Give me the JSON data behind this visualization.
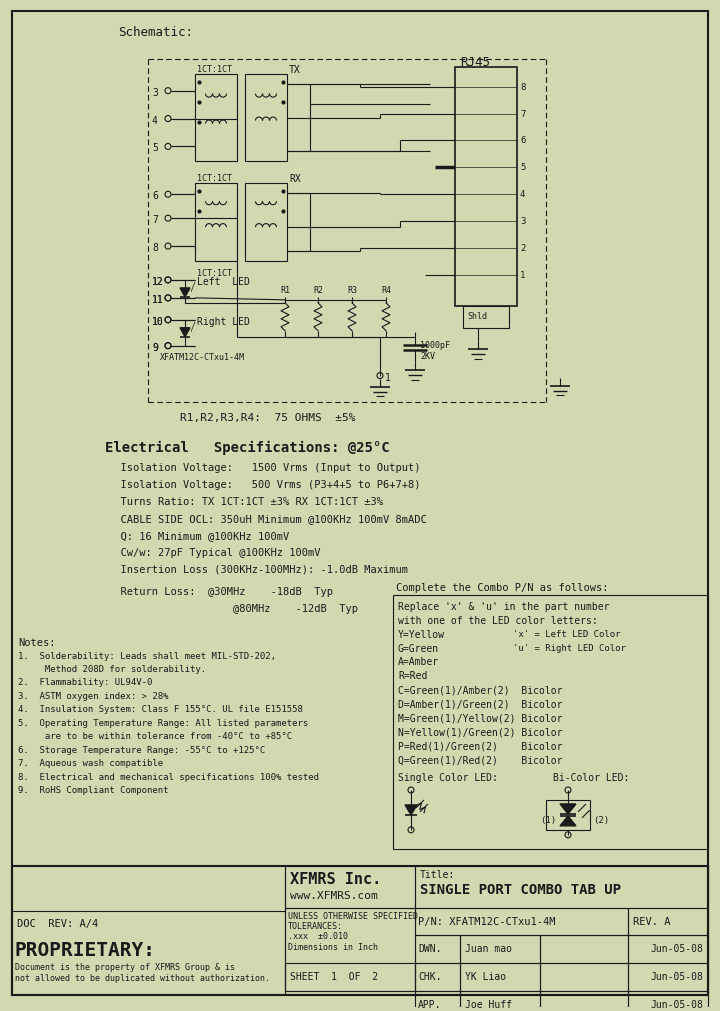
{
  "bg_color": "#d4d8b0",
  "border_color": "#1a1a1a",
  "schematic_title": "Schematic:",
  "elec_spec_title": "Electrical   Specifications: @25°C",
  "elec_specs": [
    "  Isolation Voltage:   1500 Vrms (Input to Output)",
    "  Isolation Voltage:   500 Vrms (P3+4+5 to P6+7+8)",
    "  Turns Ratio: TX 1CT:1CT ±3% RX 1CT:1CT ±3%",
    "  CABLE SIDE OCL: 350uH Minimum @100KHz 100mV 8mADC",
    "  Q: 16 Minimum @100KHz 100mV",
    "  Cw/w: 27pF Typical @100KHz 100mV",
    "  Insertion Loss (300KHz-100MHz): -1.0dB Maximum"
  ],
  "return_loss_lines": [
    "  Return Loss:  @30MHz    -18dB  Typ",
    "                    @80MHz    -12dB  Typ"
  ],
  "combo_title": "Complete the Combo P/N as follows:",
  "combo_lines": [
    "Replace 'x' & 'u' in the part number",
    "with one of the LED color letters:",
    "Y=Yellow",
    "G=Green",
    "A=Amber",
    "R=Red",
    "C=Green(1)/Amber(2)  Bicolor",
    "D=Amber(1)/Green(2)  Bicolor",
    "M=Green(1)/Yellow(2) Bicolor",
    "N=Yellow(1)/Green(2) Bicolor",
    "P=Red(1)/Green(2)    Bicolor",
    "Q=Green(1)/Red(2)    Bicolor"
  ],
  "combo_annot1": "'x' = Left LED Color",
  "combo_annot2": "'u' = Right LED Color",
  "combo_led_label1": "Single Color LED:",
  "combo_led_label2": "Bi-Color LED:",
  "notes_title": "Notes:",
  "notes": [
    "1.  Solderability: Leads shall meet MIL-STD-202,",
    "     Method 208D for solderability.",
    "2.  Flammability: UL94V-0",
    "3.  ASTM oxygen index: > 28%",
    "4.  Insulation System: Class F 155°C. UL file E151558",
    "5.  Operating Temperature Range: All listed parameters",
    "     are to be within tolerance from -40°C to +85°C",
    "6.  Storage Temperature Range: -55°C to +125°C",
    "7.  Aqueous wash compatible",
    "8.  Electrical and mechanical specifications 100% tested",
    "9.  RoHS Compliant Component"
  ],
  "resistor_label": "R1,R2,R3,R4:  75 OHMS  ±5%",
  "tb_company": "XFMRS Inc.",
  "tb_website": "www.XFMRS.com",
  "tb_title_label": "Title:",
  "tb_title_value": "SINGLE PORT COMBO TAB UP",
  "tb_pn": "P/N: XFATM12C-CTxu1-4M",
  "tb_rev": "REV. A",
  "tb_unless": "UNLESS OTHERWISE SPECIFIED\nTOLERANCES:\n.xxx  ±0.010\nDimensions in Inch",
  "tb_sheet": "SHEET  1  OF  2",
  "tb_dwn_label": "DWN.",
  "tb_dwn_name": "Juan mao",
  "tb_dwn_date": "Jun-05-08",
  "tb_chk_label": "CHK.",
  "tb_chk_name": "YK Liao",
  "tb_chk_date": "Jun-05-08",
  "tb_app_label": "APP.",
  "tb_app_name": "Joe Huff",
  "tb_app_date": "Jun-05-08",
  "doc_rev": "DOC  REV: A/4",
  "prop_title": "PROPRIETARY:",
  "prop_text": "Document is the property of XFMRS Group & is\nnot allowed to be duplicated without authorization."
}
